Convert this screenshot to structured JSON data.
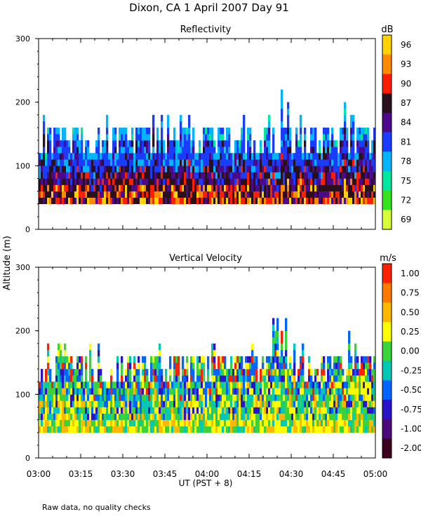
{
  "title": "Dixon, CA   1 April 2007   Day  91",
  "footnote": "Raw data, no quality checks",
  "y_label": "Altitude (m)",
  "x_label": "UT  (PST + 8)",
  "x_ticks": [
    "03:00",
    "03:15",
    "03:30",
    "03:45",
    "04:00",
    "04:15",
    "04:30",
    "04:45",
    "05:00"
  ],
  "chart_data": [
    {
      "type": "heatmap",
      "title": "Reflectivity",
      "ylabel": "Altitude (m)",
      "xlabel": "UT  (PST + 8)",
      "xlim": [
        "03:00",
        "05:00"
      ],
      "ylim": [
        0,
        300
      ],
      "y_ticks": [
        0,
        100,
        200,
        300
      ],
      "colorbar": {
        "unit": "dB",
        "labels": [
          "96",
          "93",
          "90",
          "87",
          "84",
          "81",
          "78",
          "75",
          "72",
          "69"
        ],
        "colors": [
          "#ffd200",
          "#ff8a00",
          "#ff1e00",
          "#2a0f1c",
          "#4a0a8a",
          "#1a3cff",
          "#00b4ff",
          "#00e8a0",
          "#37e31e",
          "#d8ff3c"
        ]
      },
      "data_range_alt": [
        40,
        220
      ]
    },
    {
      "type": "heatmap",
      "title": "Vertical Velocity",
      "ylabel": "Altitude (m)",
      "xlabel": "UT  (PST + 8)",
      "xlim": [
        "03:00",
        "05:00"
      ],
      "ylim": [
        0,
        300
      ],
      "y_ticks": [
        0,
        100,
        200,
        300
      ],
      "colorbar": {
        "unit": "m/s",
        "labels": [
          "1.00",
          "0.75",
          "0.50",
          "0.25",
          "0.00",
          "-0.25",
          "-0.50",
          "-0.75",
          "-1.00",
          "-2.00"
        ],
        "colors": [
          "#ff2200",
          "#ff7a00",
          "#ffb800",
          "#ffff00",
          "#3cd23c",
          "#00c8b4",
          "#0064ff",
          "#2a14c8",
          "#4a0a7a",
          "#3a001e"
        ]
      },
      "data_range_alt": [
        40,
        220
      ]
    }
  ]
}
